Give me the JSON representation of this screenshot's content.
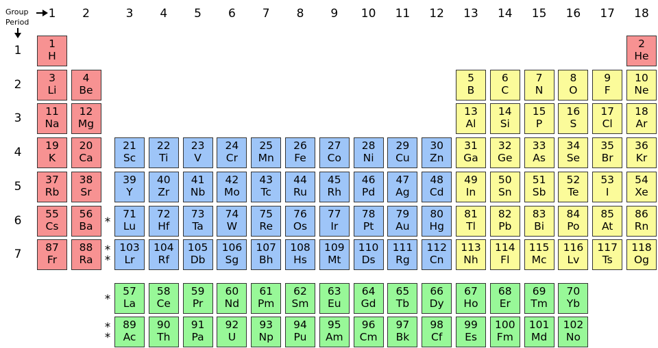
{
  "header": {
    "group_label": "Group",
    "period_label": "Period"
  },
  "groups": [
    1,
    2,
    3,
    4,
    5,
    6,
    7,
    8,
    9,
    10,
    11,
    12,
    13,
    14,
    15,
    16,
    17,
    18
  ],
  "rows": [
    {
      "period": 1,
      "elements": [
        {
          "number": 1,
          "symbol": "H"
        },
        {
          "number": 2,
          "symbol": "He"
        }
      ]
    },
    {
      "period": 2,
      "elements": [
        {
          "number": 3,
          "symbol": "Li"
        },
        {
          "number": 4,
          "symbol": "Be"
        },
        {
          "number": 5,
          "symbol": "B"
        },
        {
          "number": 6,
          "symbol": "C"
        },
        {
          "number": 7,
          "symbol": "N"
        },
        {
          "number": 8,
          "symbol": "O"
        },
        {
          "number": 9,
          "symbol": "F"
        },
        {
          "number": 10,
          "symbol": "Ne"
        }
      ]
    },
    {
      "period": 3,
      "elements": [
        {
          "number": 11,
          "symbol": "Na"
        },
        {
          "number": 12,
          "symbol": "Mg"
        },
        {
          "number": 13,
          "symbol": "Al"
        },
        {
          "number": 14,
          "symbol": "Si"
        },
        {
          "number": 15,
          "symbol": "P"
        },
        {
          "number": 16,
          "symbol": "S"
        },
        {
          "number": 17,
          "symbol": "Cl"
        },
        {
          "number": 18,
          "symbol": "Ar"
        }
      ]
    },
    {
      "period": 4,
      "elements": [
        {
          "number": 19,
          "symbol": "K"
        },
        {
          "number": 20,
          "symbol": "Ca"
        },
        {
          "number": 21,
          "symbol": "Sc"
        },
        {
          "number": 22,
          "symbol": "Ti"
        },
        {
          "number": 23,
          "symbol": "V"
        },
        {
          "number": 24,
          "symbol": "Cr"
        },
        {
          "number": 25,
          "symbol": "Mn"
        },
        {
          "number": 26,
          "symbol": "Fe"
        },
        {
          "number": 27,
          "symbol": "Co"
        },
        {
          "number": 28,
          "symbol": "Ni"
        },
        {
          "number": 29,
          "symbol": "Cu"
        },
        {
          "number": 30,
          "symbol": "Zn"
        },
        {
          "number": 31,
          "symbol": "Ga"
        },
        {
          "number": 32,
          "symbol": "Ge"
        },
        {
          "number": 33,
          "symbol": "As"
        },
        {
          "number": 34,
          "symbol": "Se"
        },
        {
          "number": 35,
          "symbol": "Br"
        },
        {
          "number": 36,
          "symbol": "Kr"
        }
      ]
    },
    {
      "period": 5,
      "elements": [
        {
          "number": 37,
          "symbol": "Rb"
        },
        {
          "number": 38,
          "symbol": "Sr"
        },
        {
          "number": 39,
          "symbol": "Y"
        },
        {
          "number": 40,
          "symbol": "Zr"
        },
        {
          "number": 41,
          "symbol": "Nb"
        },
        {
          "number": 42,
          "symbol": "Mo"
        },
        {
          "number": 43,
          "symbol": "Tc"
        },
        {
          "number": 44,
          "symbol": "Ru"
        },
        {
          "number": 45,
          "symbol": "Rh"
        },
        {
          "number": 46,
          "symbol": "Pd"
        },
        {
          "number": 47,
          "symbol": "Ag"
        },
        {
          "number": 48,
          "symbol": "Cd"
        },
        {
          "number": 49,
          "symbol": "In"
        },
        {
          "number": 50,
          "symbol": "Sn"
        },
        {
          "number": 51,
          "symbol": "Sb"
        },
        {
          "number": 52,
          "symbol": "Te"
        },
        {
          "number": 53,
          "symbol": "I"
        },
        {
          "number": 54,
          "symbol": "Xe"
        }
      ]
    },
    {
      "period": 6,
      "marker": "*",
      "elements": [
        {
          "number": 55,
          "symbol": "Cs"
        },
        {
          "number": 56,
          "symbol": "Ba"
        },
        {
          "number": 71,
          "symbol": "Lu"
        },
        {
          "number": 72,
          "symbol": "Hf"
        },
        {
          "number": 73,
          "symbol": "Ta"
        },
        {
          "number": 74,
          "symbol": "W"
        },
        {
          "number": 75,
          "symbol": "Re"
        },
        {
          "number": 76,
          "symbol": "Os"
        },
        {
          "number": 77,
          "symbol": "Ir"
        },
        {
          "number": 78,
          "symbol": "Pt"
        },
        {
          "number": 79,
          "symbol": "Au"
        },
        {
          "number": 80,
          "symbol": "Hg"
        },
        {
          "number": 81,
          "symbol": "Tl"
        },
        {
          "number": 82,
          "symbol": "Pb"
        },
        {
          "number": 83,
          "symbol": "Bi"
        },
        {
          "number": 84,
          "symbol": "Po"
        },
        {
          "number": 85,
          "symbol": "At"
        },
        {
          "number": 86,
          "symbol": "Rn"
        }
      ]
    },
    {
      "period": 7,
      "marker": "**",
      "elements": [
        {
          "number": 87,
          "symbol": "Fr"
        },
        {
          "number": 88,
          "symbol": "Ra"
        },
        {
          "number": 103,
          "symbol": "Lr"
        },
        {
          "number": 104,
          "symbol": "Rf"
        },
        {
          "number": 105,
          "symbol": "Db"
        },
        {
          "number": 106,
          "symbol": "Sg"
        },
        {
          "number": 107,
          "symbol": "Bh"
        },
        {
          "number": 108,
          "symbol": "Hs"
        },
        {
          "number": 109,
          "symbol": "Mt"
        },
        {
          "number": 110,
          "symbol": "Ds"
        },
        {
          "number": 111,
          "symbol": "Rg"
        },
        {
          "number": 112,
          "symbol": "Cn"
        },
        {
          "number": 113,
          "symbol": "Nh"
        },
        {
          "number": 114,
          "symbol": "Fl"
        },
        {
          "number": 115,
          "symbol": "Mc"
        },
        {
          "number": 116,
          "symbol": "Lv"
        },
        {
          "number": 117,
          "symbol": "Ts"
        },
        {
          "number": 118,
          "symbol": "Og"
        }
      ]
    }
  ],
  "f_rows": [
    {
      "marker": "*",
      "elements": [
        {
          "number": 57,
          "symbol": "La"
        },
        {
          "number": 58,
          "symbol": "Ce"
        },
        {
          "number": 59,
          "symbol": "Pr"
        },
        {
          "number": 60,
          "symbol": "Nd"
        },
        {
          "number": 61,
          "symbol": "Pm"
        },
        {
          "number": 62,
          "symbol": "Sm"
        },
        {
          "number": 63,
          "symbol": "Eu"
        },
        {
          "number": 64,
          "symbol": "Gd"
        },
        {
          "number": 65,
          "symbol": "Tb"
        },
        {
          "number": 66,
          "symbol": "Dy"
        },
        {
          "number": 67,
          "symbol": "Ho"
        },
        {
          "number": 68,
          "symbol": "Er"
        },
        {
          "number": 69,
          "symbol": "Tm"
        },
        {
          "number": 70,
          "symbol": "Yb"
        }
      ]
    },
    {
      "marker": "**",
      "elements": [
        {
          "number": 89,
          "symbol": "Ac"
        },
        {
          "number": 90,
          "symbol": "Th"
        },
        {
          "number": 91,
          "symbol": "Pa"
        },
        {
          "number": 92,
          "symbol": "U"
        },
        {
          "number": 93,
          "symbol": "Np"
        },
        {
          "number": 94,
          "symbol": "Pu"
        },
        {
          "number": 95,
          "symbol": "Am"
        },
        {
          "number": 96,
          "symbol": "Cm"
        },
        {
          "number": 97,
          "symbol": "Bk"
        },
        {
          "number": 98,
          "symbol": "Cf"
        },
        {
          "number": 99,
          "symbol": "Es"
        },
        {
          "number": 100,
          "symbol": "Fm"
        },
        {
          "number": 101,
          "symbol": "Md"
        },
        {
          "number": 102,
          "symbol": "No"
        }
      ]
    }
  ]
}
